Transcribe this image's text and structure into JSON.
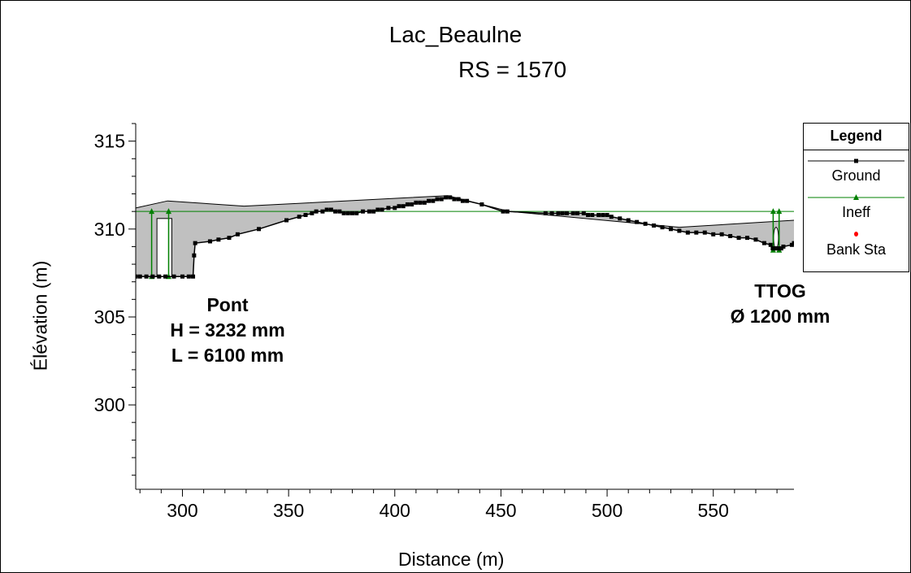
{
  "chart_data": {
    "type": "line",
    "title": "Lac_Beaulne",
    "subtitle": "RS = 1570",
    "xlabel": "Distance (m)",
    "ylabel": "Élévation (m)",
    "xlim": [
      278,
      588
    ],
    "ylim": [
      295.2,
      316
    ],
    "xticks": [
      300,
      350,
      400,
      450,
      500,
      550
    ],
    "yticks": [
      300,
      305,
      310,
      315
    ],
    "grid": false,
    "legend": {
      "title": "Legend",
      "placement": "right",
      "entries": [
        "Ground",
        "Ineff",
        "Bank Sta"
      ]
    },
    "colors": {
      "ground": "#000000",
      "ineff": "#008000",
      "bank": "#ff0000",
      "fill": "#c0c0c0"
    },
    "series": [
      {
        "name": "Ground",
        "x": [
          278,
          280,
          283,
          286,
          289,
          292,
          296,
          300,
          303,
          305,
          305.5,
          306,
          313,
          317,
          322,
          326,
          336,
          349,
          355,
          358,
          361,
          363,
          366,
          368,
          370,
          372,
          374,
          376,
          378,
          380,
          382,
          385,
          388,
          390,
          392,
          394,
          397,
          400,
          402,
          404,
          406,
          408,
          410,
          412,
          414,
          416,
          418,
          420,
          422,
          424,
          426,
          428,
          430,
          432,
          434,
          441,
          451,
          453,
          471,
          474,
          477,
          479,
          481,
          484,
          486,
          489,
          491,
          493,
          496,
          498,
          500,
          502,
          506,
          510,
          514,
          518,
          522,
          526,
          530,
          534,
          538,
          542,
          546,
          550,
          554,
          558,
          562,
          566,
          570,
          574,
          577,
          578,
          579,
          580,
          581,
          582,
          583,
          587,
          588
        ],
        "y": [
          307.3,
          307.3,
          307.3,
          307.3,
          307.3,
          307.3,
          307.3,
          307.3,
          307.3,
          307.3,
          308.5,
          309.2,
          309.3,
          309.4,
          309.5,
          309.7,
          310.0,
          310.5,
          310.7,
          310.8,
          310.9,
          311.0,
          311.0,
          311.1,
          311.1,
          311.0,
          311.0,
          310.9,
          310.9,
          310.9,
          310.9,
          311.0,
          311.0,
          311.0,
          311.1,
          311.1,
          311.2,
          311.2,
          311.3,
          311.3,
          311.4,
          311.4,
          311.5,
          311.5,
          311.5,
          311.6,
          311.6,
          311.7,
          311.7,
          311.8,
          311.8,
          311.7,
          311.7,
          311.6,
          311.6,
          311.4,
          311.0,
          311.0,
          310.9,
          310.9,
          310.9,
          310.9,
          310.9,
          310.9,
          310.9,
          310.9,
          310.8,
          310.8,
          310.8,
          310.8,
          310.8,
          310.7,
          310.6,
          310.5,
          310.4,
          310.3,
          310.2,
          310.1,
          310.0,
          309.9,
          309.8,
          309.8,
          309.8,
          309.7,
          309.7,
          309.6,
          309.5,
          309.5,
          309.4,
          309.2,
          309.1,
          308.9,
          308.9,
          308.9,
          308.9,
          308.9,
          309.0,
          309.1,
          309.2
        ]
      },
      {
        "name": "Ineff",
        "x": [
          278,
          588
        ],
        "y": [
          311.0,
          311.0
        ]
      }
    ],
    "ineff_markers": [
      {
        "x": 285.5,
        "y_bottom": 307.3,
        "y_top": 311.0
      },
      {
        "x": 293.5,
        "y_bottom": 307.3,
        "y_top": 311.0
      },
      {
        "x": 578.2,
        "y_bottom": 308.8,
        "y_top": 311.0
      },
      {
        "x": 581.0,
        "y_bottom": 308.8,
        "y_top": 311.0
      }
    ],
    "structures": {
      "top": {
        "x": [
          278,
          293,
          329,
          425,
          454,
          534,
          588
        ],
        "y": [
          311.2,
          311.6,
          311.3,
          311.9,
          311.0,
          310.1,
          310.5
        ]
      },
      "bridge_deck": {
        "x0": 288,
        "x1": 295,
        "y0": 307.3,
        "y1": 310.6
      },
      "culvert": {
        "x0": 578.4,
        "x1": 580.7,
        "y0": 308.9,
        "y1": 310.1
      }
    },
    "annotations": [
      {
        "lines": [
          "Pont",
          "H = 3232 mm",
          "L = 6100 mm"
        ]
      },
      {
        "lines": [
          "TTOG",
          "Ø 1200 mm"
        ]
      }
    ]
  }
}
